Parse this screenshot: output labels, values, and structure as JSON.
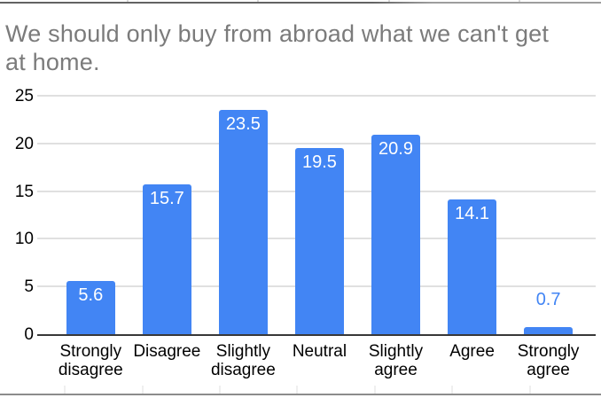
{
  "window": {
    "background": "#ffffff"
  },
  "sheet": {
    "top_border_color_left": "#636363",
    "top_border_color_right": "#9e9e9e",
    "bottom_border_color": "#8c8c8c",
    "cell_tick_color": "#d9d9d9"
  },
  "chart_data": {
    "type": "bar",
    "title": "We should only buy from abroad what we can't get at home.",
    "title_lines": [
      "We should only buy from abroad what we can't get",
      "at home."
    ],
    "categories": [
      "Strongly disagree",
      "Disagree",
      "Slightly disagree",
      "Neutral",
      "Slightly agree",
      "Agree",
      "Strongly agree"
    ],
    "values": [
      5.6,
      15.7,
      23.5,
      19.5,
      20.9,
      14.1,
      0.7
    ],
    "value_labels": [
      "5.6",
      "15.7",
      "23.5",
      "19.5",
      "20.9",
      "14.1",
      "0.7"
    ],
    "xlabel": "",
    "ylabel": "",
    "y_axis": {
      "ticks": [
        0,
        5,
        10,
        15,
        20,
        25
      ],
      "min": 0,
      "max": 25
    },
    "grid": true,
    "legend": "none",
    "colors": {
      "bar": "#4285f4",
      "value_label_inside": "#ffffff",
      "value_label_outside": "#4285f4",
      "title": "#7b7b7b",
      "axis_text": "#000000",
      "gridline": "#e0e0e0",
      "baseline": "#383838"
    }
  }
}
